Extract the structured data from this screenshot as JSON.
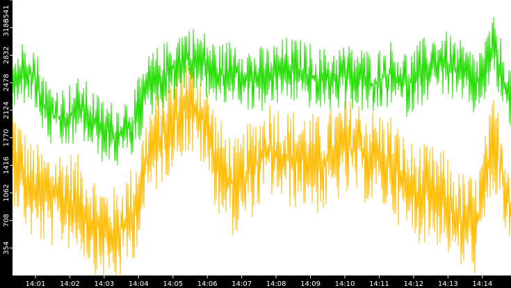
{
  "chart_data": {
    "type": "line",
    "title": "",
    "xlabel": "",
    "ylabel": "",
    "ylim": [
      0,
      3541
    ],
    "y_ticks": [
      354,
      708,
      1062,
      1416,
      1770,
      2124,
      2478,
      2832,
      3186,
      3541
    ],
    "x_ticks": [
      "14:01",
      "14:02",
      "14:03",
      "14:04",
      "14:05",
      "14:06",
      "14:07",
      "14:08",
      "14:09",
      "14:10",
      "14:11",
      "14:12",
      "14:13",
      "14:14"
    ],
    "x_range": [
      "14:00:20",
      "14:14:50"
    ],
    "grid": false,
    "legend": "none",
    "background": "#ffffff",
    "axis_background": "#000000",
    "series": [
      {
        "color": "#22dd00",
        "x": [
          "14:00:20",
          "14:00:50",
          "14:01:20",
          "14:01:50",
          "14:02:20",
          "14:02:50",
          "14:03:20",
          "14:03:50",
          "14:04:20",
          "14:04:50",
          "14:05:20",
          "14:05:50",
          "14:06:20",
          "14:06:50",
          "14:07:20",
          "14:07:50",
          "14:08:20",
          "14:08:50",
          "14:09:20",
          "14:09:50",
          "14:10:20",
          "14:10:50",
          "14:11:20",
          "14:11:50",
          "14:12:20",
          "14:12:50",
          "14:13:20",
          "14:13:50",
          "14:14:20",
          "14:14:50"
        ],
        "values": [
          2450,
          2700,
          2100,
          2000,
          2150,
          1900,
          1800,
          1950,
          2450,
          2600,
          2800,
          2750,
          2550,
          2650,
          2500,
          2550,
          2650,
          2600,
          2500,
          2550,
          2550,
          2450,
          2600,
          2450,
          2650,
          2750,
          2600,
          2450,
          2900,
          2250
        ],
        "spread": 430
      },
      {
        "color": "#ffbb00",
        "x": [
          "14:00:20",
          "14:00:50",
          "14:01:20",
          "14:01:50",
          "14:02:20",
          "14:02:50",
          "14:03:20",
          "14:03:50",
          "14:04:20",
          "14:04:50",
          "14:05:20",
          "14:05:50",
          "14:06:20",
          "14:06:50",
          "14:07:20",
          "14:07:50",
          "14:08:20",
          "14:08:50",
          "14:09:20",
          "14:09:50",
          "14:10:20",
          "14:10:50",
          "14:11:20",
          "14:11:50",
          "14:12:20",
          "14:12:50",
          "14:13:20",
          "14:13:50",
          "14:14:20",
          "14:14:50"
        ],
        "values": [
          1600,
          1100,
          1000,
          1000,
          900,
          600,
          500,
          800,
          1600,
          1900,
          2200,
          2050,
          1400,
          1100,
          1400,
          1650,
          1500,
          1500,
          1400,
          1600,
          1650,
          1500,
          1450,
          1100,
          1050,
          1000,
          700,
          650,
          1700,
          900
        ],
        "spread": 650
      }
    ]
  }
}
